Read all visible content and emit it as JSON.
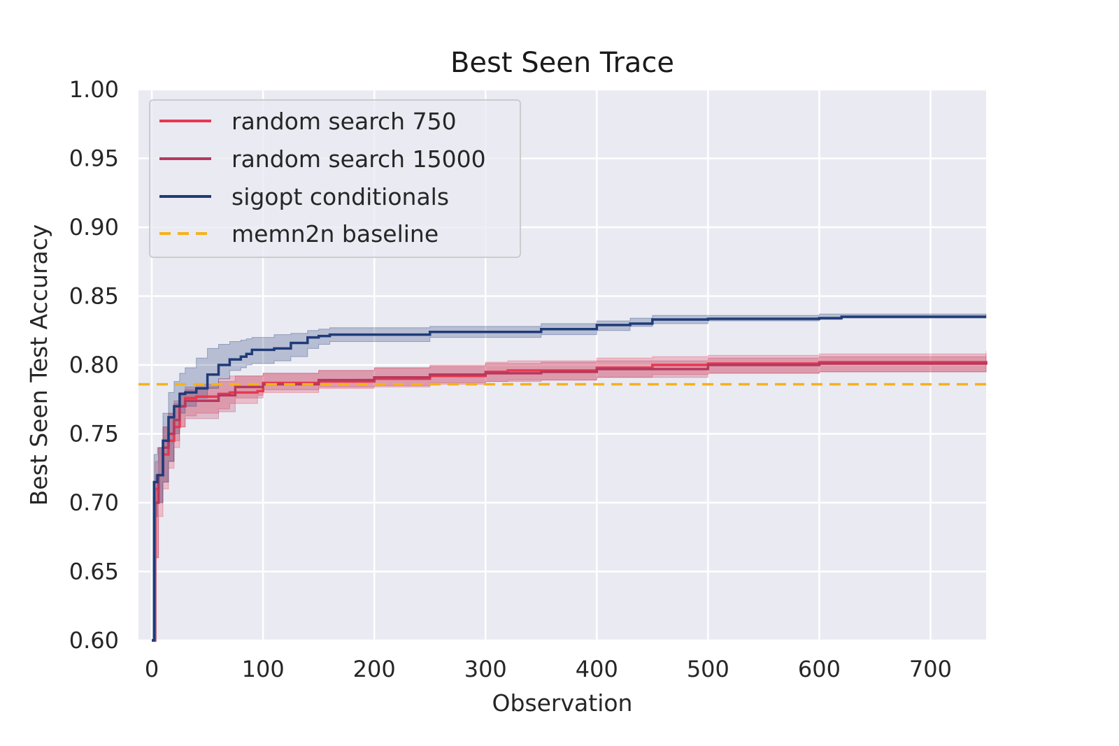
{
  "chart_data": {
    "type": "line",
    "title": "Best Seen Trace",
    "xlabel": "Observation",
    "ylabel": "Best Seen Test Accuracy",
    "xlim": [
      -12,
      750
    ],
    "ylim": [
      0.6,
      1.0
    ],
    "xticks": [
      0,
      100,
      200,
      300,
      400,
      500,
      600,
      700
    ],
    "xtick_labels": [
      "0",
      "100",
      "200",
      "300",
      "400",
      "500",
      "600",
      "700"
    ],
    "yticks": [
      0.6,
      0.65,
      0.7,
      0.75,
      0.8,
      0.85,
      0.9,
      0.95,
      1.0
    ],
    "ytick_labels": [
      "0.60",
      "0.65",
      "0.70",
      "0.75",
      "0.80",
      "0.85",
      "0.90",
      "0.95",
      "1.00"
    ],
    "grid": true,
    "legend_position": "top-left",
    "series": [
      {
        "name": "random search 750",
        "color": "#e8384f",
        "style": "solid",
        "band_opacity": 0.25,
        "x": [
          0,
          3,
          6,
          10,
          15,
          20,
          25,
          30,
          40,
          60,
          70,
          95,
          100,
          150,
          200,
          250,
          300,
          320,
          400,
          450,
          500,
          600,
          750
        ],
        "y": [
          0.6,
          0.71,
          0.72,
          0.735,
          0.745,
          0.755,
          0.77,
          0.776,
          0.777,
          0.779,
          0.78,
          0.781,
          0.787,
          0.788,
          0.79,
          0.792,
          0.795,
          0.796,
          0.798,
          0.8,
          0.801,
          0.802,
          0.803
        ],
        "lower": [
          0.6,
          0.66,
          0.69,
          0.71,
          0.725,
          0.74,
          0.755,
          0.763,
          0.765,
          0.768,
          0.772,
          0.778,
          0.78,
          0.783,
          0.784,
          0.786,
          0.788,
          0.789,
          0.791,
          0.793,
          0.794,
          0.795,
          0.797
        ],
        "upper": [
          0.6,
          0.73,
          0.74,
          0.755,
          0.765,
          0.772,
          0.778,
          0.782,
          0.786,
          0.79,
          0.792,
          0.792,
          0.794,
          0.796,
          0.798,
          0.8,
          0.802,
          0.803,
          0.805,
          0.806,
          0.807,
          0.808,
          0.81
        ]
      },
      {
        "name": "random search 15000",
        "color": "#b7395d",
        "style": "solid",
        "band_opacity": 0.25,
        "x": [
          0,
          3,
          6,
          10,
          15,
          20,
          25,
          30,
          60,
          75,
          100,
          150,
          200,
          250,
          300,
          350,
          400,
          500,
          600,
          750
        ],
        "y": [
          0.6,
          0.7,
          0.72,
          0.74,
          0.75,
          0.76,
          0.77,
          0.774,
          0.778,
          0.784,
          0.786,
          0.789,
          0.791,
          0.793,
          0.794,
          0.795,
          0.797,
          0.8,
          0.801,
          0.802
        ],
        "lower": [
          0.6,
          0.66,
          0.7,
          0.715,
          0.73,
          0.745,
          0.755,
          0.761,
          0.766,
          0.776,
          0.782,
          0.784,
          0.785,
          0.787,
          0.788,
          0.789,
          0.791,
          0.794,
          0.795,
          0.796
        ],
        "upper": [
          0.6,
          0.72,
          0.74,
          0.755,
          0.765,
          0.774,
          0.78,
          0.784,
          0.788,
          0.792,
          0.794,
          0.796,
          0.798,
          0.799,
          0.801,
          0.802,
          0.803,
          0.805,
          0.806,
          0.808
        ]
      },
      {
        "name": "sigopt conditionals",
        "color": "#1f3b78",
        "style": "solid",
        "band_opacity": 0.25,
        "x": [
          0,
          2,
          5,
          10,
          15,
          20,
          25,
          30,
          40,
          50,
          60,
          70,
          80,
          85,
          90,
          110,
          125,
          140,
          150,
          160,
          250,
          350,
          400,
          430,
          450,
          500,
          600,
          620,
          750
        ],
        "y": [
          0.6,
          0.715,
          0.72,
          0.745,
          0.762,
          0.77,
          0.779,
          0.78,
          0.783,
          0.793,
          0.8,
          0.804,
          0.806,
          0.808,
          0.811,
          0.812,
          0.816,
          0.82,
          0.821,
          0.822,
          0.824,
          0.826,
          0.829,
          0.83,
          0.833,
          0.8335,
          0.834,
          0.835,
          0.835
        ],
        "lower": [
          0.6,
          0.69,
          0.7,
          0.715,
          0.73,
          0.75,
          0.765,
          0.77,
          0.776,
          0.783,
          0.79,
          0.796,
          0.798,
          0.8,
          0.801,
          0.803,
          0.806,
          0.812,
          0.815,
          0.817,
          0.82,
          0.822,
          0.825,
          0.828,
          0.83,
          0.832,
          0.833,
          0.834,
          0.834
        ],
        "upper": [
          0.6,
          0.735,
          0.74,
          0.765,
          0.78,
          0.788,
          0.794,
          0.798,
          0.805,
          0.812,
          0.815,
          0.817,
          0.818,
          0.819,
          0.82,
          0.822,
          0.823,
          0.825,
          0.826,
          0.827,
          0.828,
          0.83,
          0.832,
          0.834,
          0.836,
          0.836,
          0.837,
          0.837,
          0.837
        ]
      },
      {
        "name": "memn2n baseline",
        "color": "#f5b21a",
        "style": "dashed",
        "x": [
          -12,
          750
        ],
        "y": [
          0.786,
          0.786
        ]
      }
    ]
  }
}
